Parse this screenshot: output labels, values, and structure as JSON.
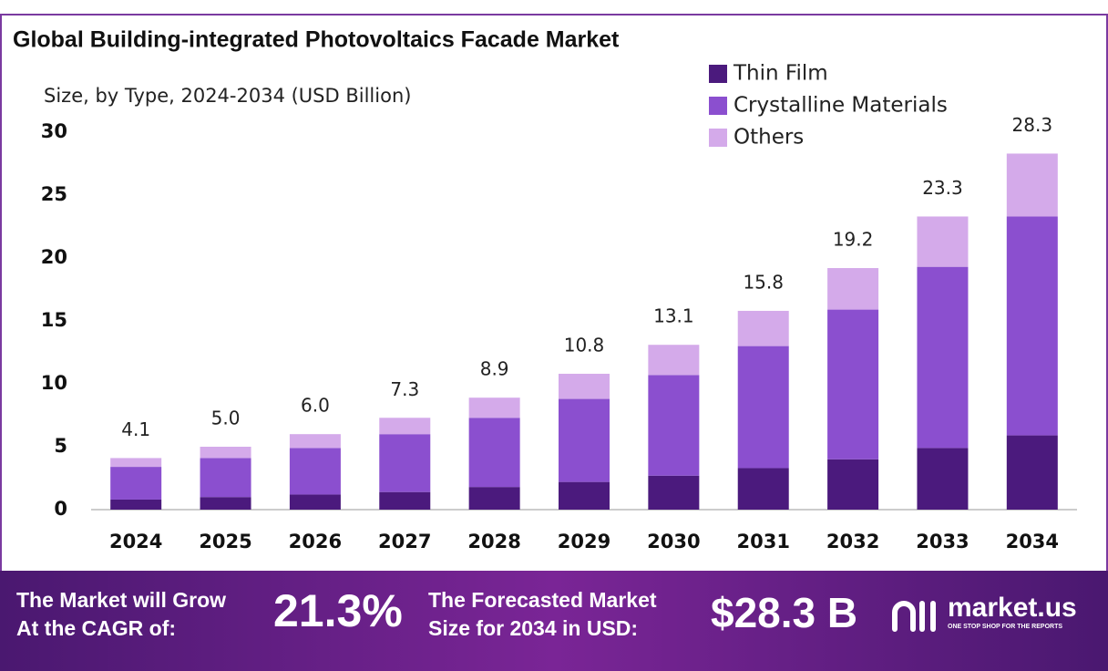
{
  "chart_data": {
    "type": "stacked-bar",
    "title": "Global Building-integrated Photovoltaics Facade Market",
    "subtitle": "Size, by Type, 2024-2034 (USD Billion)",
    "categories": [
      "2024",
      "2025",
      "2026",
      "2027",
      "2028",
      "2029",
      "2030",
      "2031",
      "2032",
      "2033",
      "2034"
    ],
    "series": [
      {
        "name": "Thin Film",
        "color": "#4b1a7d",
        "values": [
          0.8,
          1.0,
          1.2,
          1.4,
          1.8,
          2.2,
          2.7,
          3.3,
          4.0,
          4.9,
          5.9
        ]
      },
      {
        "name": "Crystalline Materials",
        "color": "#8b4fcf",
        "values": [
          2.6,
          3.1,
          3.7,
          4.6,
          5.5,
          6.6,
          8.0,
          9.7,
          11.9,
          14.4,
          17.4
        ]
      },
      {
        "name": "Others",
        "color": "#d4aaea",
        "values": [
          0.7,
          0.9,
          1.1,
          1.3,
          1.6,
          2.0,
          2.4,
          2.8,
          3.3,
          4.0,
          5.0
        ]
      }
    ],
    "totals": [
      4.1,
      5,
      6,
      7.3,
      8.9,
      10.8,
      13.1,
      15.8,
      19.2,
      23.3,
      28.3
    ],
    "value_labels": [
      "4.1",
      "5.0",
      "6.0",
      "7.3",
      "8.9",
      "10.8",
      "13.1",
      "15.8",
      "19.2",
      "23.3",
      "28.3"
    ],
    "ylim": [
      0,
      30
    ],
    "yticks": [
      0,
      5,
      10,
      15,
      20,
      25,
      30
    ],
    "grid": false,
    "legend": "top-right"
  },
  "footer": {
    "cagr_text_1": "The Market will Grow",
    "cagr_text_2": "At the CAGR of:",
    "cagr": "21.3%",
    "forecast_text_1": "The Forecasted Market",
    "forecast_text_2": "Size for 2034 in USD:",
    "forecast": "$28.3 B",
    "brand": "market.us",
    "tagline": "ONE STOP SHOP FOR THE REPORTS"
  }
}
